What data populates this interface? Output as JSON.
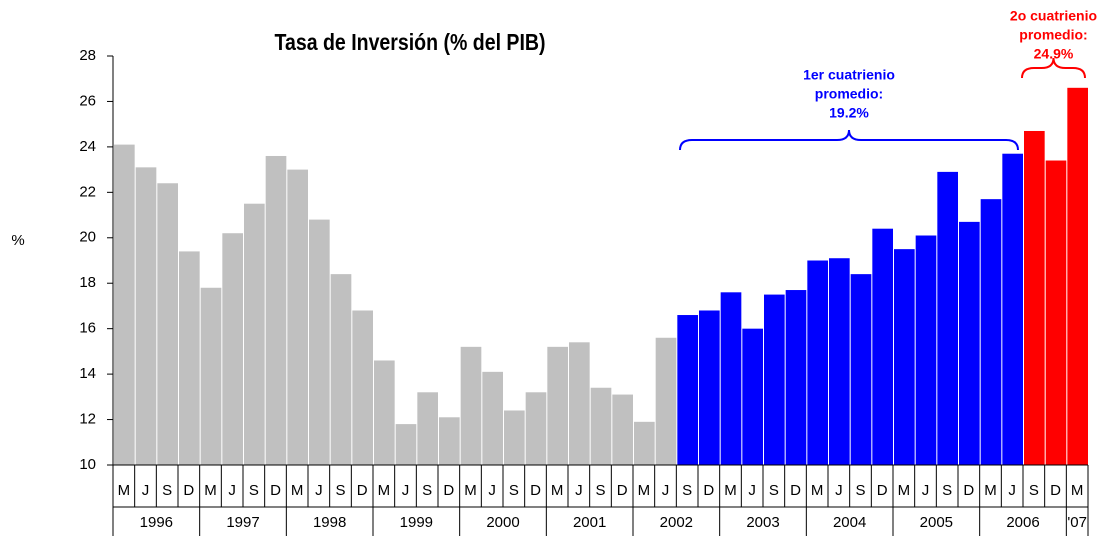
{
  "chart_data": {
    "type": "bar",
    "title": "Tasa de Inversión (% del PIB)",
    "y_label": "%",
    "categories": [
      "M",
      "J",
      "S",
      "D",
      "M",
      "J",
      "S",
      "D",
      "M",
      "J",
      "S",
      "D",
      "M",
      "J",
      "S",
      "D",
      "M",
      "J",
      "S",
      "D",
      "M",
      "J",
      "S",
      "D",
      "M",
      "J",
      "S",
      "D",
      "M",
      "J",
      "S",
      "D",
      "M",
      "J",
      "S",
      "D",
      "M",
      "J",
      "S",
      "D",
      "M",
      "J",
      "S",
      "D",
      "M"
    ],
    "year_labels": [
      "1996",
      "1997",
      "1998",
      "1999",
      "2000",
      "2001",
      "2002",
      "2003",
      "2004",
      "2005",
      "2006",
      "'07"
    ],
    "values": [
      24.1,
      23.1,
      22.4,
      19.4,
      17.8,
      20.2,
      21.5,
      23.6,
      23.0,
      20.8,
      18.4,
      16.8,
      14.6,
      11.8,
      13.2,
      12.1,
      15.2,
      14.1,
      12.4,
      13.2,
      15.2,
      15.4,
      13.4,
      13.1,
      11.9,
      15.6,
      16.6,
      16.8,
      17.6,
      16.0,
      17.5,
      17.7,
      19.0,
      19.1,
      18.4,
      20.4,
      19.5,
      20.1,
      22.9,
      20.7,
      21.7,
      23.7,
      24.7,
      23.4,
      26.6
    ],
    "colors": [
      "#c0c0c0",
      "#c0c0c0",
      "#c0c0c0",
      "#c0c0c0",
      "#c0c0c0",
      "#c0c0c0",
      "#c0c0c0",
      "#c0c0c0",
      "#c0c0c0",
      "#c0c0c0",
      "#c0c0c0",
      "#c0c0c0",
      "#c0c0c0",
      "#c0c0c0",
      "#c0c0c0",
      "#c0c0c0",
      "#c0c0c0",
      "#c0c0c0",
      "#c0c0c0",
      "#c0c0c0",
      "#c0c0c0",
      "#c0c0c0",
      "#c0c0c0",
      "#c0c0c0",
      "#c0c0c0",
      "#c0c0c0",
      "#0000ff",
      "#0000ff",
      "#0000ff",
      "#0000ff",
      "#0000ff",
      "#0000ff",
      "#0000ff",
      "#0000ff",
      "#0000ff",
      "#0000ff",
      "#0000ff",
      "#0000ff",
      "#0000ff",
      "#0000ff",
      "#0000ff",
      "#0000ff",
      "#ff0000",
      "#ff0000",
      "#ff0000"
    ],
    "ylim": [
      10,
      28
    ],
    "yticks": [
      10,
      12,
      14,
      16,
      18,
      20,
      22,
      24,
      26,
      28
    ],
    "annotations": [
      {
        "lines": [
          "1er cuatrienio",
          "promedio:",
          "19.2%"
        ],
        "color": "#0000ff"
      },
      {
        "lines": [
          "2o cuatrienio",
          "promedio:",
          "24.9%"
        ],
        "color": "#ff0000"
      }
    ]
  }
}
